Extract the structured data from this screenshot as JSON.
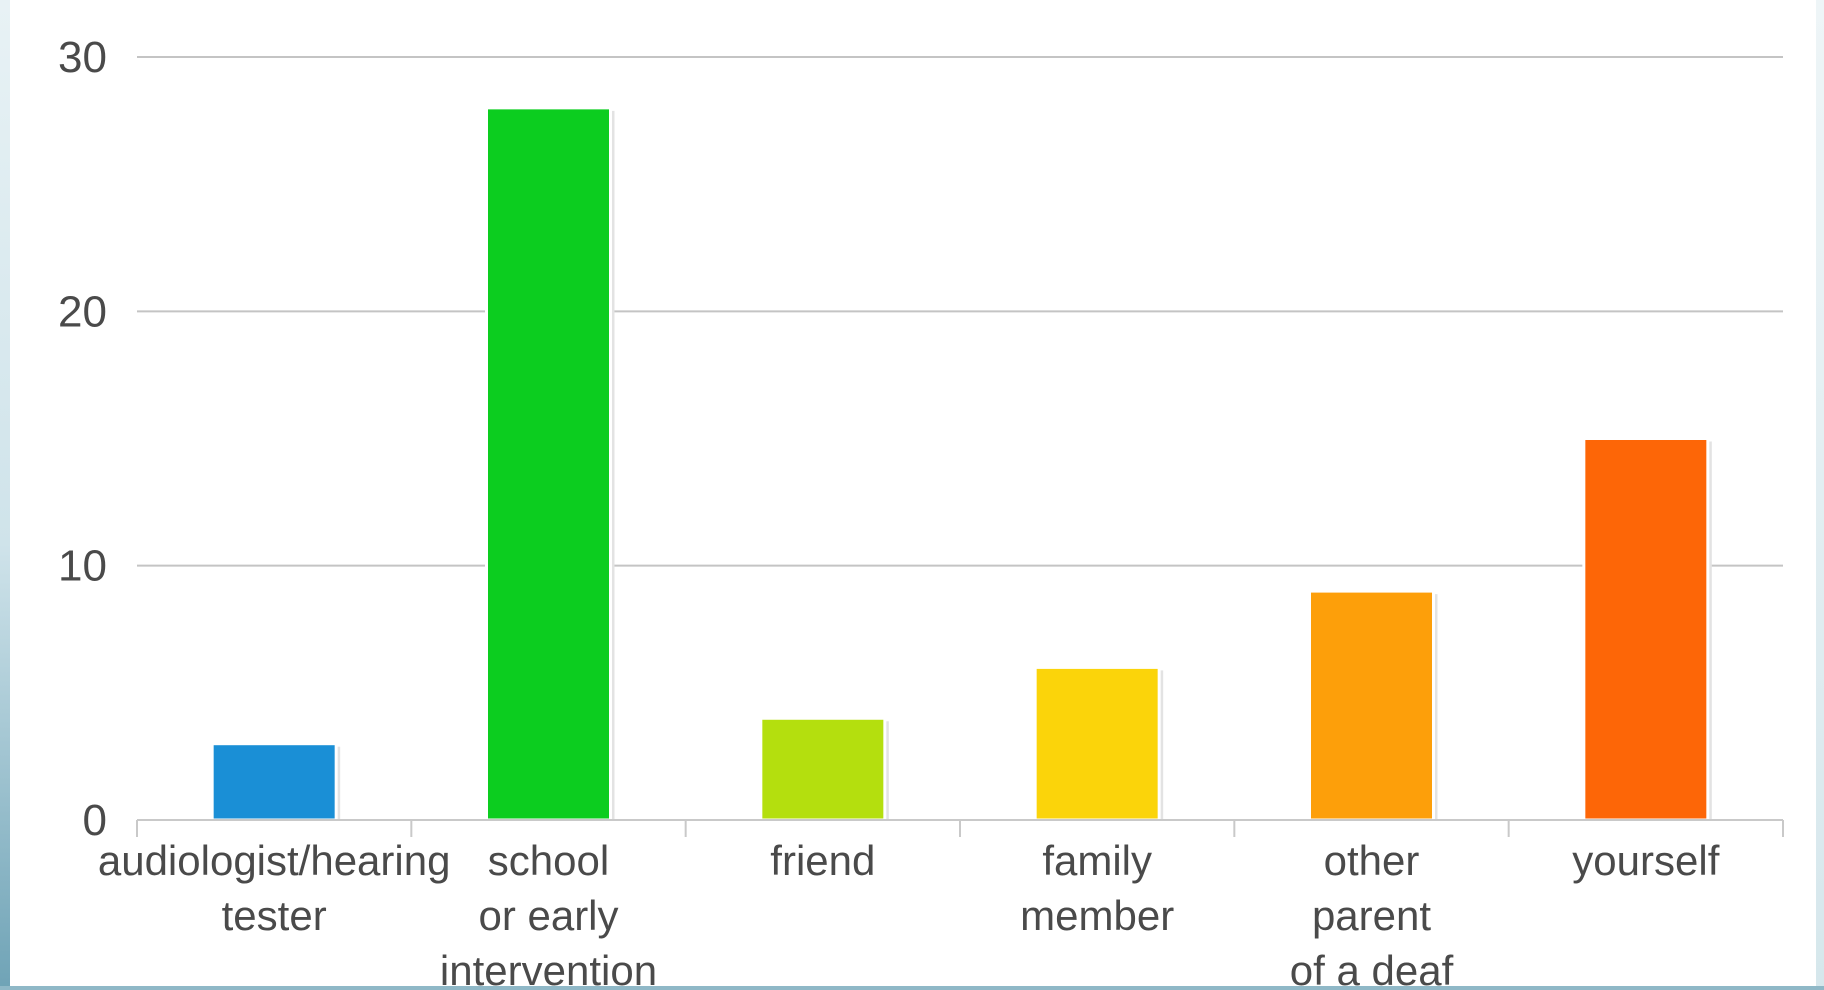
{
  "chart_data": {
    "type": "bar",
    "categories": [
      [
        "audiologist/hearing",
        "tester"
      ],
      [
        "school",
        "or early",
        "intervention"
      ],
      [
        "friend"
      ],
      [
        "family",
        "member"
      ],
      [
        "other",
        "parent",
        "of a deaf"
      ],
      [
        "yourself"
      ]
    ],
    "values": [
      3,
      28,
      4,
      6,
      9,
      15
    ],
    "colors": [
      "#1a8fd6",
      "#0ccd1f",
      "#b4df0e",
      "#fbd40a",
      "#fd9f0a",
      "#fd6607"
    ],
    "ylim": [
      0,
      30
    ],
    "yticks": [
      0,
      10,
      20,
      30
    ],
    "grid": true,
    "legend": "none",
    "title": "",
    "xlabel": "",
    "ylabel": ""
  }
}
